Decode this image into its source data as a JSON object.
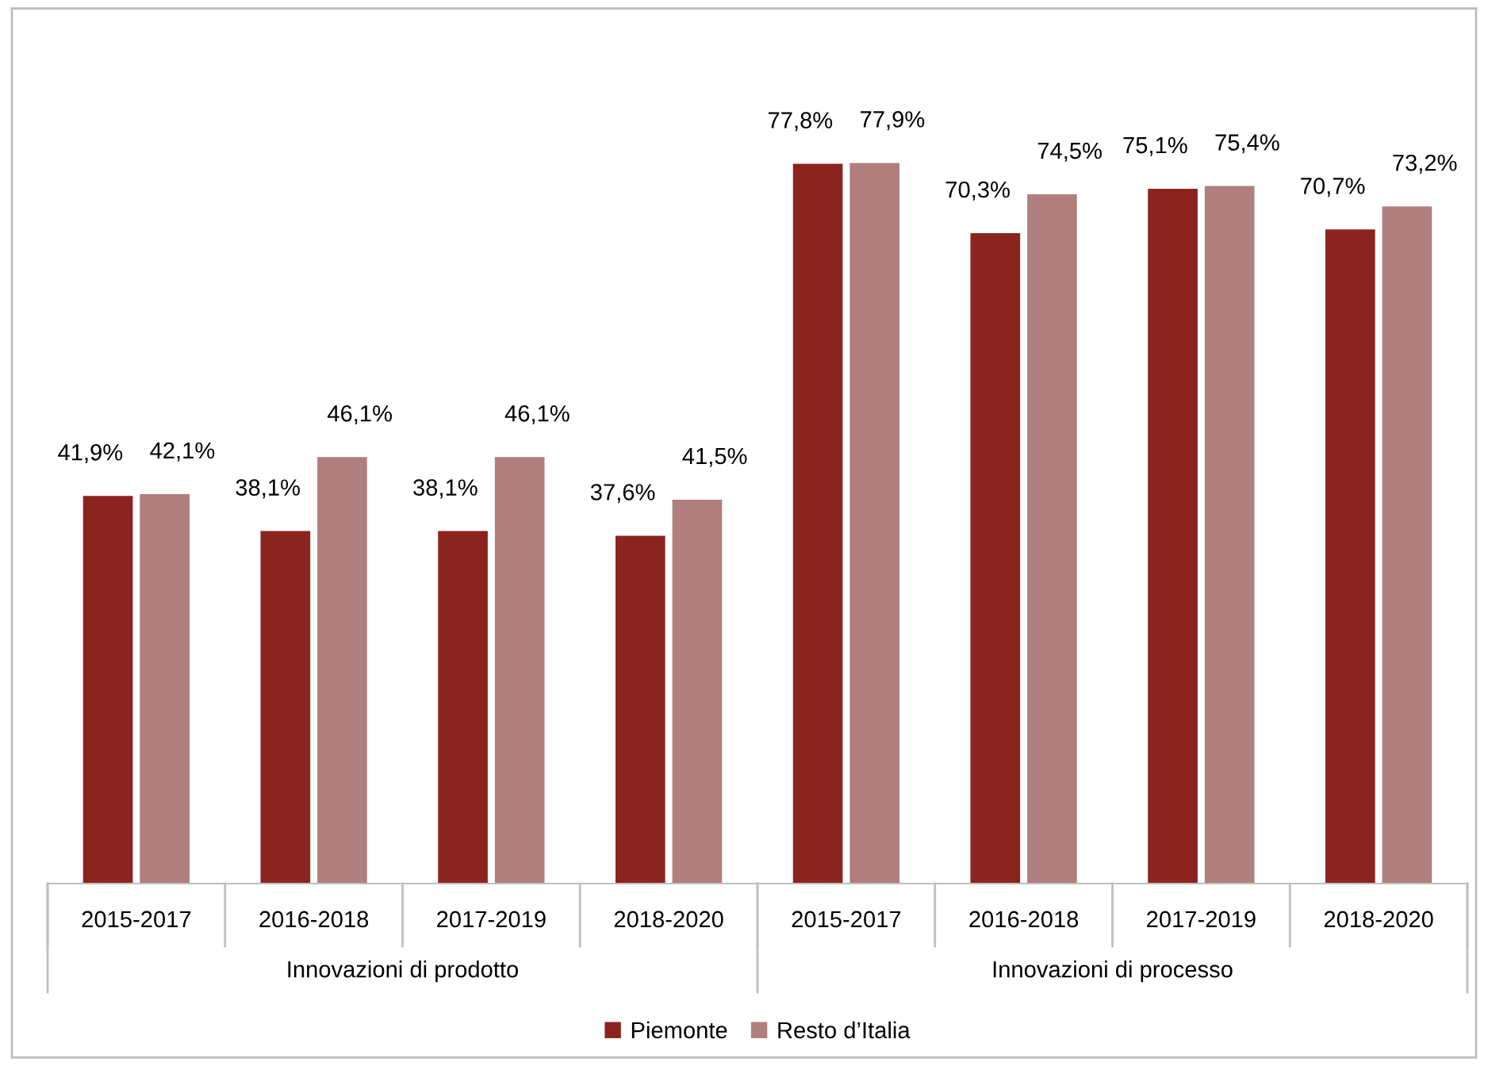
{
  "chart_data": {
    "type": "bar",
    "categories": [
      "2015-2017",
      "2016-2018",
      "2017-2019",
      "2018-2020",
      "2015-2017",
      "2016-2018",
      "2017-2019",
      "2018-2020"
    ],
    "annotations": [
      "Innovazioni di prodotto",
      "Innovazioni di processo"
    ],
    "series": [
      {
        "name": "Piemonte",
        "color": "#8b231f",
        "values": [
          41.9,
          38.1,
          38.1,
          37.6,
          77.8,
          70.3,
          75.1,
          70.7
        ],
        "value_labels": [
          "41,9%",
          "38,1%",
          "38,1%",
          "37,6%",
          "77,8%",
          "70,3%",
          "75,1%",
          "70,7%"
        ]
      },
      {
        "name": "Resto d’Italia",
        "color": "#b07f7e",
        "values": [
          42.1,
          46.1,
          46.1,
          41.5,
          77.9,
          74.5,
          75.4,
          73.2
        ],
        "value_labels": [
          "42,1%",
          "46,1%",
          "46,1%",
          "41,5%",
          "77,9%",
          "74,5%",
          "75,4%",
          "73,2%"
        ]
      }
    ],
    "tick_labels": "x",
    "legend": "bottom"
  }
}
